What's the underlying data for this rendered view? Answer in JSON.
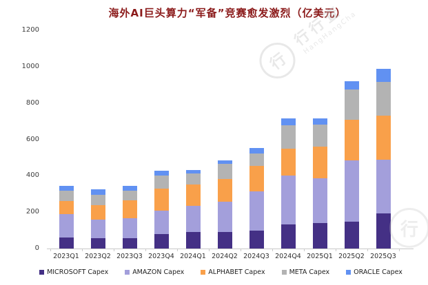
{
  "title": "海外AI巨头算力“军备”竞赛愈发激烈（亿美元）",
  "style": {
    "title_color": "#8b1a1a",
    "axis_color": "#c9c9c9",
    "background": "#ffffff"
  },
  "watermark": {
    "logo_glyph": "行",
    "cn": "行行查",
    "en": "HangHangCha"
  },
  "chart_data": {
    "type": "bar",
    "stacked": true,
    "title": "海外AI巨头算力“军备”竞赛愈发激烈（亿美元）",
    "xlabel": "",
    "ylabel": "",
    "ylim": [
      0,
      1200
    ],
    "yticks": [
      0,
      200,
      400,
      600,
      800,
      1000,
      1200
    ],
    "grid": false,
    "legend_position": "bottom",
    "categories": [
      "2023Q1",
      "2023Q2",
      "2023Q3",
      "2023Q4",
      "2024Q1",
      "2024Q2",
      "2024Q3",
      "2024Q4",
      "2025Q1",
      "2025Q2",
      "2025Q3"
    ],
    "series": [
      {
        "name": "MICROSOFT Capex",
        "color": "#443085",
        "values": [
          60,
          58,
          57,
          79,
          90,
          92,
          98,
          133,
          142,
          149,
          195
        ]
      },
      {
        "name": "AMAZON Capex",
        "color": "#a39fdb",
        "values": [
          130,
          102,
          110,
          130,
          143,
          166,
          217,
          270,
          244,
          337,
          294
        ]
      },
      {
        "name": "ALPHABET Capex",
        "color": "#f9a04a",
        "values": [
          72,
          77,
          98,
          122,
          120,
          126,
          139,
          146,
          175,
          223,
          242
        ]
      },
      {
        "name": "META Capex",
        "color": "#b3b3b3",
        "values": [
          57,
          57,
          53,
          69,
          60,
          82,
          69,
          129,
          120,
          164,
          187
        ]
      },
      {
        "name": "ORACLE Capex",
        "color": "#6191f2",
        "values": [
          25,
          31,
          28,
          29,
          19,
          17,
          29,
          37,
          35,
          48,
          69
        ]
      }
    ]
  }
}
